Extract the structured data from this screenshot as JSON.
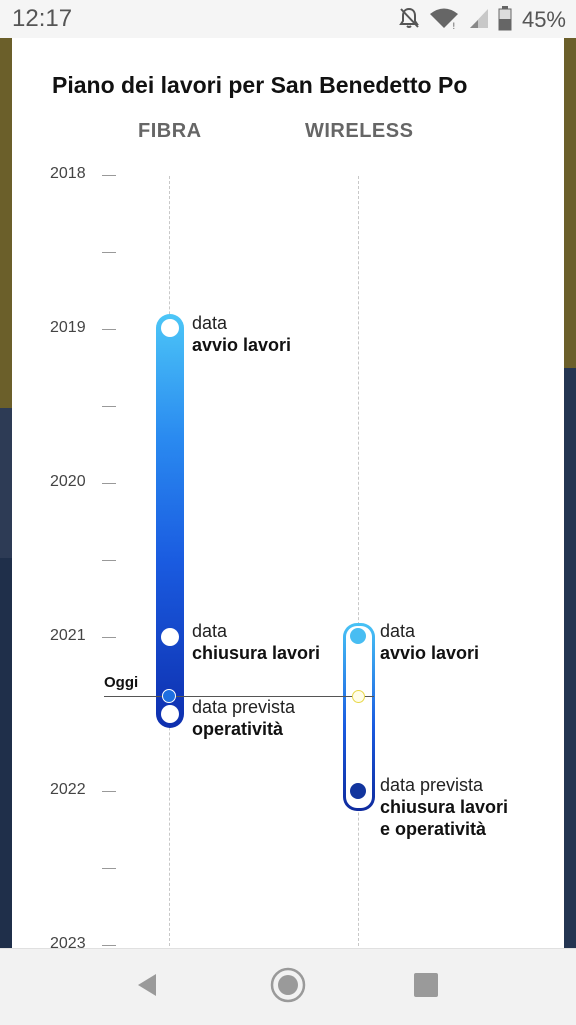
{
  "status_bar": {
    "time": "12:17",
    "battery_percent": "45%",
    "icons": [
      "notifications-off-icon",
      "wifi-icon",
      "cell-signal-icon",
      "battery-icon"
    ]
  },
  "card": {
    "title": "Piano dei lavori per San Benedetto Po",
    "columns": {
      "fibra": "FIBRA",
      "wireless": "WIRELESS"
    },
    "years": [
      "2018",
      "2019",
      "2020",
      "2021",
      "2022",
      "2023"
    ],
    "today_label": "Oggi",
    "fibra": {
      "start": {
        "l1": "data",
        "l2": "avvio lavori"
      },
      "end": {
        "l1": "data",
        "l2": "chiusura lavori"
      },
      "operational": {
        "l1": "data prevista",
        "l2": "operatività"
      }
    },
    "wireless": {
      "start": {
        "l1": "data",
        "l2": "avvio lavori"
      },
      "end": {
        "l1": "data prevista",
        "l2": "chiusura lavori",
        "l3": "e operatività"
      }
    },
    "colors": {
      "bar_top": "#4cc6f7",
      "bar_bottom": "#0e2fae"
    }
  },
  "nav_bar": {
    "icons": [
      "back-icon",
      "home-icon",
      "recent-apps-icon"
    ]
  }
}
